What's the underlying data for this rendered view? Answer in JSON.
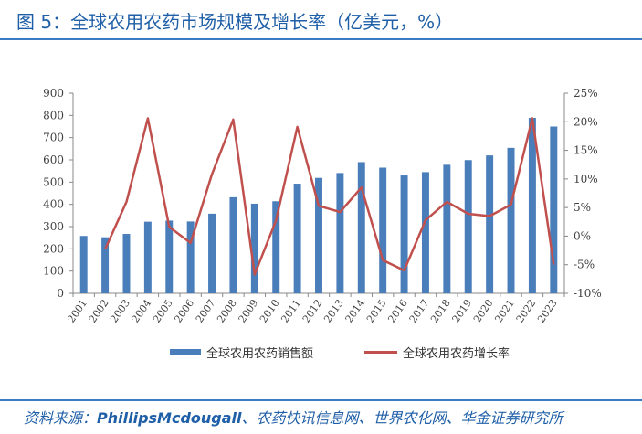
{
  "figure": {
    "title": "图 5：全球农用农药市场规模及增长率（亿美元，%）",
    "source_prefix": "资料来源：",
    "source_brand": "PhillipsMcdougall",
    "source_rest": "、农药快讯信息网、世界农化网、华金证券研究所"
  },
  "chart_data": {
    "type": "bar+line",
    "categories": [
      "2001",
      "2002",
      "2003",
      "2004",
      "2005",
      "2006",
      "2007",
      "2008",
      "2009",
      "2010",
      "2011",
      "2012",
      "2013",
      "2014",
      "2015",
      "2016",
      "2017",
      "2018",
      "2019",
      "2020",
      "2021",
      "2022",
      "2023"
    ],
    "series": [
      {
        "name": "全球农用农药销售额",
        "type": "bar",
        "axis": "left",
        "color": "#4a7ebb",
        "values": [
          258,
          252,
          267,
          322,
          327,
          323,
          358,
          432,
          403,
          414,
          493,
          519,
          541,
          590,
          565,
          530,
          545,
          578,
          599,
          620,
          654,
          789,
          750
        ]
      },
      {
        "name": "全球农用农药增长率",
        "type": "line",
        "axis": "right",
        "color": "#c0504d",
        "values": [
          null,
          -2.3,
          6.0,
          20.6,
          1.6,
          -1.2,
          10.8,
          20.4,
          -6.7,
          2.7,
          19.1,
          5.3,
          4.2,
          8.5,
          -4.2,
          -6.0,
          2.8,
          6.0,
          3.9,
          3.5,
          5.5,
          20.6,
          -5.0
        ]
      }
    ],
    "yleft": {
      "min": 0,
      "max": 900,
      "step": 100,
      "ticks": [
        "0",
        "100",
        "200",
        "300",
        "400",
        "500",
        "600",
        "700",
        "800",
        "900"
      ]
    },
    "yright": {
      "min": -10,
      "max": 25,
      "step": 5,
      "ticks": [
        "-10%",
        "-5%",
        "0%",
        "5%",
        "10%",
        "15%",
        "20%",
        "25%"
      ]
    },
    "legend_position": "bottom"
  }
}
